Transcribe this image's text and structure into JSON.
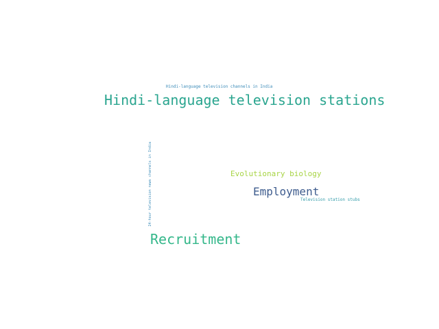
{
  "word_cloud": {
    "words": [
      {
        "text": "Hindi-language television channels in India",
        "color": "#3b8bb8",
        "orientation": "horizontal"
      },
      {
        "text": "Hindi-language television stations",
        "color": "#2aa58f",
        "orientation": "horizontal"
      },
      {
        "text": "24-hour television news channels in India",
        "color": "#3b8bb8",
        "orientation": "vertical"
      },
      {
        "text": "Evolutionary biology",
        "color": "#a7d444",
        "orientation": "horizontal"
      },
      {
        "text": "Employment",
        "color": "#3e5c8e",
        "orientation": "horizontal"
      },
      {
        "text": "Television station stubs",
        "color": "#2f9aa8",
        "orientation": "horizontal"
      },
      {
        "text": "Recruitment",
        "color": "#34b78a",
        "orientation": "horizontal"
      }
    ]
  }
}
